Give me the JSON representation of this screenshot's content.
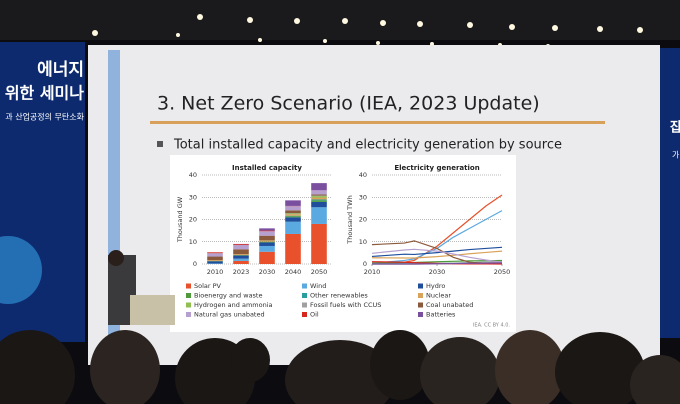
{
  "banner_left": [
    "에너지",
    "위한 세미나",
    "과 산업공정의 무탄소화"
  ],
  "banner_right": [
    "잡",
    "가"
  ],
  "slide": {
    "title": "3. Net Zero Scenario (IEA, 2023 Update)",
    "bullet": "Total installed capacity and electricity generation by source",
    "source": "IEA. CC BY 4.0."
  },
  "chart_data": [
    {
      "type": "stacked-bar",
      "title": "Installed capacity",
      "ylabel": "Thousand GW",
      "categories": [
        "2010",
        "2023",
        "2030",
        "2040",
        "2050"
      ],
      "ylim": [
        0,
        40
      ],
      "yticks": [
        0,
        10,
        20,
        30,
        40
      ],
      "grid": true,
      "series": [
        {
          "name": "Solar PV",
          "color": "#e8512b",
          "values": [
            0.04,
            1.4,
            5.5,
            13.5,
            18
          ]
        },
        {
          "name": "Wind",
          "color": "#5aa9e0",
          "values": [
            0.2,
            1.0,
            2.6,
            5.5,
            7.5
          ]
        },
        {
          "name": "Hydro",
          "color": "#1f4e9c",
          "values": [
            1.0,
            1.4,
            1.6,
            2.0,
            2.4
          ]
        },
        {
          "name": "Bioenergy and waste",
          "color": "#4f9a3a",
          "values": [
            0.1,
            0.2,
            0.3,
            0.5,
            0.7
          ]
        },
        {
          "name": "Other renewables",
          "color": "#2a9d9d",
          "values": [
            0.01,
            0.02,
            0.05,
            0.2,
            0.4
          ]
        },
        {
          "name": "Nuclear",
          "color": "#d9a35a",
          "values": [
            0.4,
            0.4,
            0.5,
            0.7,
            0.9
          ]
        },
        {
          "name": "Hydrogen and ammonia",
          "color": "#8fbf4f",
          "values": [
            0,
            0,
            0.05,
            0.3,
            0.6
          ]
        },
        {
          "name": "Fossil fuels with CCUS",
          "color": "#a0a0a0",
          "values": [
            0,
            0,
            0.02,
            0.2,
            0.3
          ]
        },
        {
          "name": "Coal unabated",
          "color": "#8b5a3c",
          "values": [
            1.6,
            2.2,
            2.1,
            1.2,
            0.5
          ]
        },
        {
          "name": "Natural gas unabated",
          "color": "#b5a0d0",
          "values": [
            1.5,
            1.9,
            2.0,
            1.9,
            1.8
          ]
        },
        {
          "name": "Oil",
          "color": "#d7261e",
          "values": [
            0.4,
            0.4,
            0.3,
            0.1,
            0.05
          ]
        },
        {
          "name": "Batteries",
          "color": "#7b4fa0",
          "values": [
            0,
            0.1,
            1.0,
            2.5,
            3.2
          ]
        }
      ]
    },
    {
      "type": "line",
      "title": "Electricity generation",
      "ylabel": "Thousand TWh",
      "x": [
        2010,
        2020,
        2023,
        2030,
        2035,
        2040,
        2045,
        2050
      ],
      "xlim": [
        2010,
        2050
      ],
      "xticks": [
        2010,
        2030,
        2050
      ],
      "ylim": [
        0,
        40
      ],
      "yticks": [
        0,
        10,
        20,
        30,
        40
      ],
      "grid": true,
      "series": [
        {
          "color": "#e8512b",
          "values": [
            0.03,
            0.8,
            1.6,
            8,
            14,
            20,
            26,
            31
          ]
        },
        {
          "color": "#5aa9e0",
          "values": [
            0.3,
            1.6,
            2.3,
            7,
            12,
            16,
            20,
            24
          ]
        },
        {
          "color": "#1f4e9c",
          "values": [
            3.4,
            4.4,
            4.3,
            5.1,
            5.8,
            6.5,
            7.0,
            7.5
          ]
        },
        {
          "color": "#4f9a3a",
          "values": [
            0.4,
            0.6,
            0.7,
            1.0,
            1.2,
            1.4,
            1.5,
            1.6
          ]
        },
        {
          "color": "#2a9d9d",
          "values": [
            0.1,
            0.1,
            0.1,
            0.2,
            0.4,
            0.6,
            0.8,
            1.0
          ]
        },
        {
          "color": "#d9a35a",
          "values": [
            2.8,
            2.7,
            2.7,
            3.3,
            3.9,
            4.6,
            5.2,
            5.8
          ]
        },
        {
          "color": "#8fbf4f",
          "values": [
            0,
            0,
            0,
            0.1,
            0.3,
            0.5,
            0.6,
            0.7
          ]
        },
        {
          "color": "#a0a0a0",
          "values": [
            0,
            0,
            0,
            0.05,
            0.3,
            0.6,
            0.8,
            1.0
          ]
        },
        {
          "color": "#8b5a3c",
          "values": [
            8.7,
            9.4,
            10.4,
            7.0,
            3.0,
            0.8,
            0.3,
            0.2
          ]
        },
        {
          "color": "#b5a0d0",
          "values": [
            4.8,
            6.3,
            6.6,
            5.8,
            4.5,
            3.0,
            1.8,
            0.8
          ]
        },
        {
          "color": "#d7261e",
          "values": [
            1.0,
            0.8,
            0.6,
            0.3,
            0.1,
            0.05,
            0.02,
            0.01
          ]
        },
        {
          "color": "#7b4fa0",
          "values": [
            0,
            0,
            0,
            0.1,
            0.2,
            0.3,
            0.4,
            0.5
          ]
        }
      ]
    }
  ]
}
